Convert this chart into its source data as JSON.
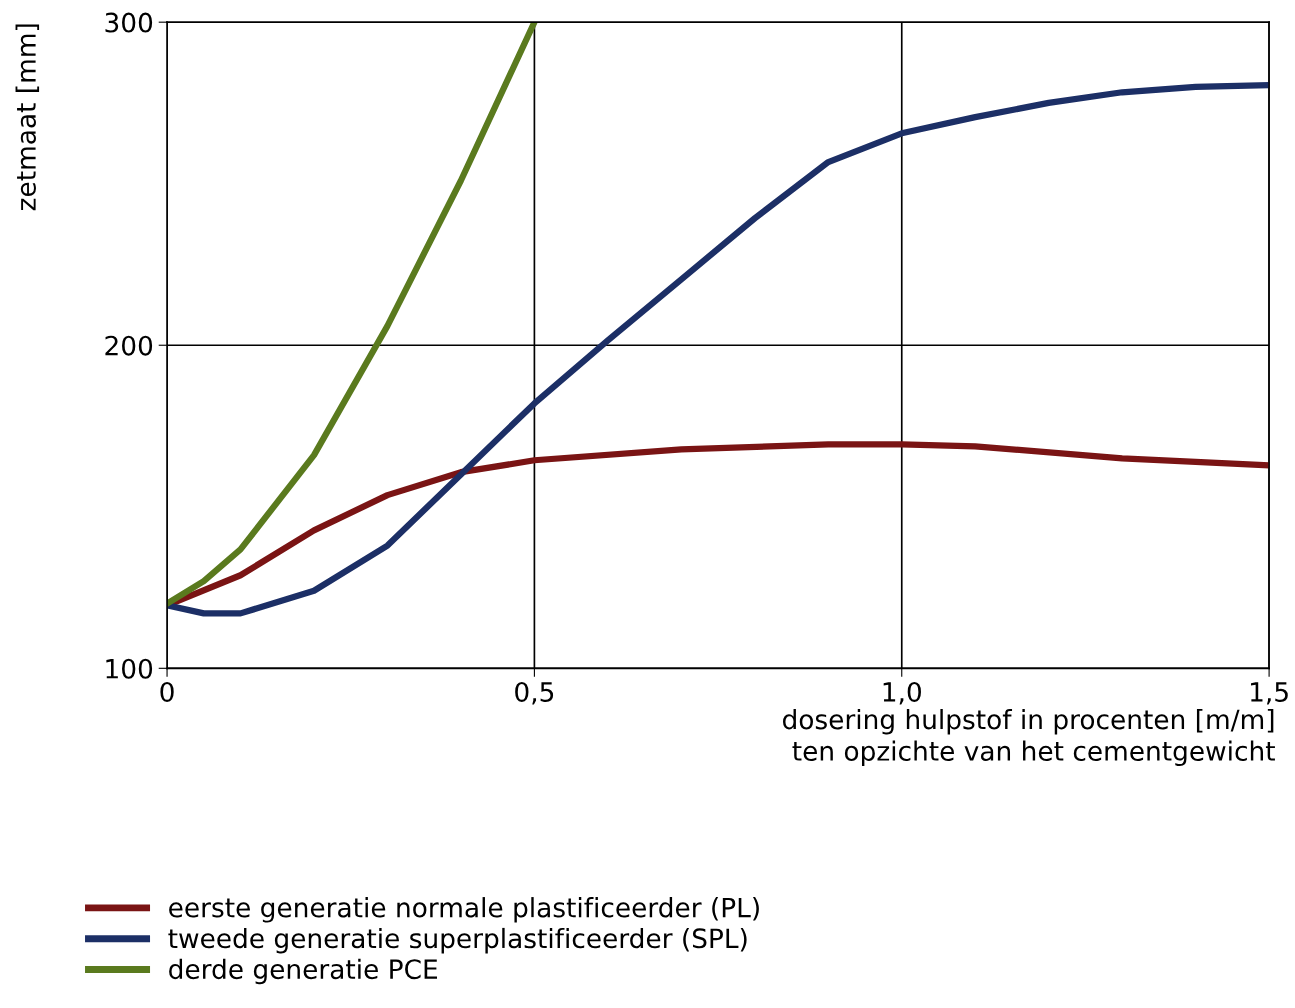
{
  "chart_data": {
    "type": "line",
    "xlabel": "dosering hulpstof in procenten [m/m]\nten opzichte van het cementgewicht",
    "ylabel": "zetmaat [mm]",
    "xlim": [
      0,
      1.5
    ],
    "ylim": [
      100,
      300
    ],
    "xticks": [
      0,
      {
        "value": 0.5,
        "label": "0,5"
      },
      {
        "value": 1.0,
        "label": "1,0"
      },
      {
        "value": 1.5,
        "label": "1,5"
      }
    ],
    "yticks": [
      100,
      200,
      300
    ],
    "grid": true,
    "legend": "bottom",
    "marker": "none",
    "line_style": "solid",
    "series": [
      {
        "name": "eerste generatie normale plastificeerder (PL)",
        "color": "#7a1414",
        "x": [
          0,
          0.1,
          0.2,
          0.3,
          0.4,
          0.5,
          0.7,
          0.9,
          1.0,
          1.1,
          1.3,
          1.5
        ],
        "values": [
          119.5,
          128.8,
          142.7,
          153.6,
          160.7,
          164.4,
          167.8,
          169.3,
          169.3,
          168.7,
          165,
          162.8
        ]
      },
      {
        "name": "tweede generatie superplastificeerder (SPL)",
        "color": "#1c2f66",
        "x": [
          0,
          0.05,
          0.1,
          0.2,
          0.3,
          0.4,
          0.5,
          0.6,
          0.7,
          0.8,
          0.9,
          1.0,
          1.1,
          1.2,
          1.3,
          1.4,
          1.5
        ],
        "values": [
          119.5,
          117,
          117,
          124,
          138,
          160,
          182,
          201.5,
          220.4,
          239.3,
          256.7,
          265.6,
          270.6,
          275,
          278.3,
          280,
          280.5
        ]
      },
      {
        "name": "derde generatie PCE",
        "color": "#5a7a1e",
        "x": [
          0,
          0.05,
          0.1,
          0.2,
          0.3,
          0.4,
          0.5
        ],
        "values": [
          120,
          127,
          136.8,
          166,
          206,
          251,
          300
        ]
      }
    ]
  }
}
